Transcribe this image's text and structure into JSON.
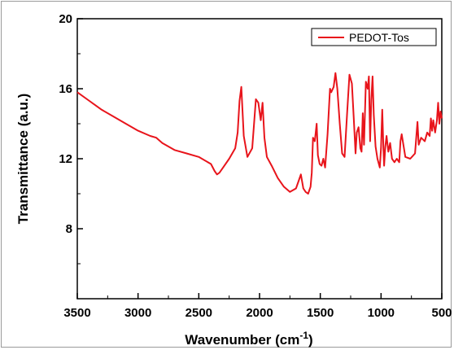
{
  "chart_data": {
    "type": "line",
    "title": "",
    "xlabel": "Wavenumber (cm",
    "xlabel_sup": "-1",
    "xlabel_close": ")",
    "ylabel": "Transmittance (a.u.)",
    "xlim": [
      3500,
      500
    ],
    "ylim": [
      4,
      20
    ],
    "x_ticks": [
      3500,
      3000,
      2500,
      2000,
      1500,
      1000,
      500
    ],
    "x_tick_labels": [
      "3500",
      "3000",
      "2500",
      "2000",
      "1500",
      "1000",
      "500"
    ],
    "y_ticks": [
      8,
      12,
      16,
      20
    ],
    "y_tick_labels": [
      "8",
      "12",
      "16",
      "20"
    ],
    "grid": false,
    "legend_position": "top-right",
    "series": [
      {
        "name": "PEDOT-Tos",
        "color": "#e8141b",
        "x": [
          3500,
          3400,
          3300,
          3200,
          3100,
          3000,
          2900,
          2850,
          2800,
          2700,
          2600,
          2500,
          2400,
          2370,
          2350,
          2330,
          2300,
          2250,
          2200,
          2180,
          2165,
          2150,
          2130,
          2100,
          2060,
          2030,
          2010,
          1990,
          1975,
          1960,
          1940,
          1900,
          1850,
          1800,
          1750,
          1700,
          1680,
          1660,
          1640,
          1620,
          1600,
          1580,
          1570,
          1560,
          1545,
          1530,
          1520,
          1505,
          1490,
          1475,
          1460,
          1440,
          1420,
          1410,
          1390,
          1375,
          1360,
          1340,
          1320,
          1300,
          1280,
          1260,
          1240,
          1225,
          1210,
          1200,
          1185,
          1170,
          1160,
          1150,
          1140,
          1125,
          1110,
          1100,
          1090,
          1080,
          1070,
          1060,
          1045,
          1030,
          1010,
          1000,
          990,
          980,
          975,
          965,
          955,
          940,
          925,
          910,
          890,
          870,
          850,
          840,
          830,
          800,
          760,
          720,
          700,
          690,
          670,
          640,
          620,
          600,
          590,
          580,
          570,
          555,
          540,
          530,
          520,
          510,
          500
        ],
        "y": [
          15.8,
          15.3,
          14.8,
          14.4,
          14.0,
          13.6,
          13.3,
          13.2,
          12.9,
          12.5,
          12.3,
          12.1,
          11.7,
          11.3,
          11.1,
          11.2,
          11.5,
          12.0,
          12.6,
          13.5,
          15.3,
          16.1,
          13.3,
          12.1,
          12.6,
          15.4,
          15.2,
          14.2,
          15.2,
          13.2,
          12.1,
          11.6,
          10.9,
          10.4,
          10.1,
          10.3,
          10.7,
          11.1,
          10.3,
          10.1,
          10.0,
          10.4,
          11.2,
          13.2,
          13.0,
          14.0,
          12.2,
          11.7,
          11.6,
          12.0,
          11.5,
          13.4,
          16.0,
          15.8,
          16.1,
          16.9,
          16.0,
          14.0,
          12.3,
          12.1,
          14.5,
          16.8,
          16.3,
          14.4,
          12.3,
          13.5,
          13.8,
          12.6,
          12.4,
          14.6,
          12.8,
          16.4,
          16.0,
          16.7,
          13.0,
          15.4,
          16.7,
          14.5,
          12.7,
          12.0,
          11.5,
          12.6,
          14.8,
          12.5,
          11.6,
          12.7,
          13.3,
          12.4,
          12.9,
          12.0,
          11.8,
          12.0,
          11.8,
          13.0,
          13.4,
          12.1,
          12.0,
          12.3,
          14.1,
          12.8,
          13.2,
          13.0,
          13.5,
          13.3,
          14.3,
          13.6,
          14.2,
          13.5,
          14.2,
          15.2,
          14.0,
          14.7,
          14.3
        ]
      }
    ]
  }
}
